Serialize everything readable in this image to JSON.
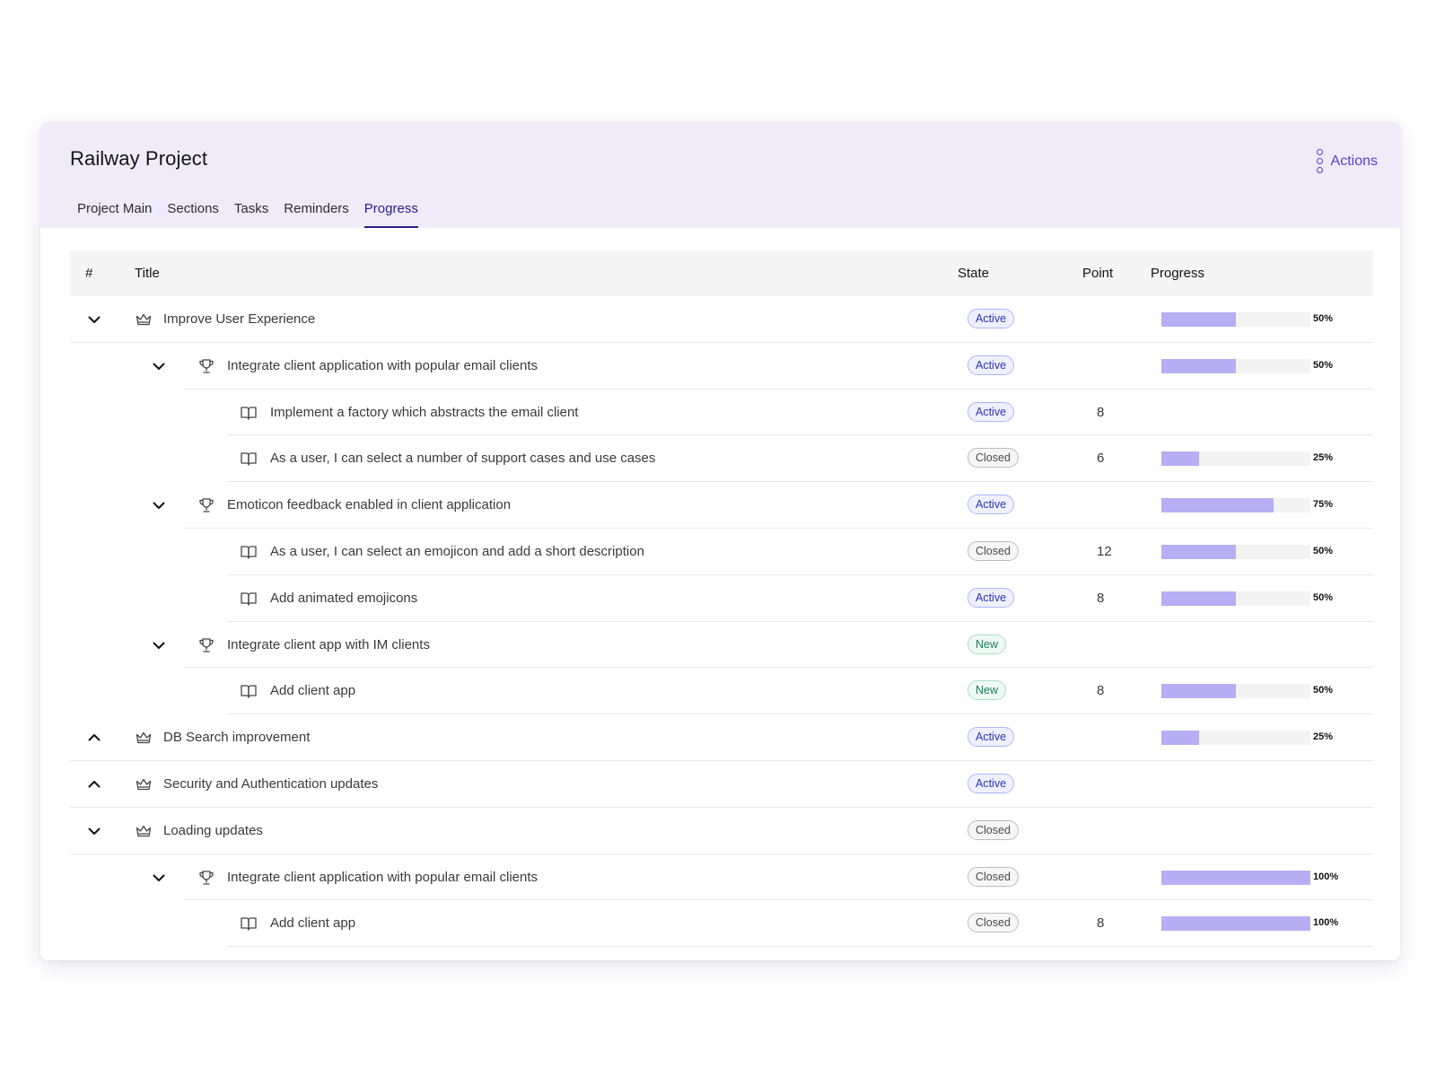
{
  "header": {
    "title": "Railway Project",
    "actions_label": "Actions",
    "tabs": [
      "Project Main",
      "Sections",
      "Tasks",
      "Reminders",
      "Progress"
    ],
    "active_tab": "Progress"
  },
  "table": {
    "columns": {
      "num": "#",
      "title": "Title",
      "state": "State",
      "point": "Point",
      "progress": "Progress"
    },
    "rows": [
      {
        "level": 0,
        "chevron": "down",
        "icon": "crown-icon",
        "title": "Improve User Experience",
        "state": "Active",
        "point": "",
        "progress": 50
      },
      {
        "level": 1,
        "chevron": "down",
        "icon": "trophy-icon",
        "title": "Integrate client application with popular email clients",
        "state": "Active",
        "point": "",
        "progress": 50
      },
      {
        "level": 2,
        "chevron": "",
        "icon": "book-icon",
        "title": "Implement a factory which abstracts the email client",
        "state": "Active",
        "point": "8",
        "progress": null
      },
      {
        "level": 2,
        "chevron": "",
        "icon": "book-icon",
        "title": "As a user, I can select a number of support cases and use cases",
        "state": "Closed",
        "point": "6",
        "progress": 25
      },
      {
        "level": 1,
        "chevron": "down",
        "icon": "trophy-icon",
        "title": "Emoticon feedback enabled in client application",
        "state": "Active",
        "point": "",
        "progress": 75
      },
      {
        "level": 2,
        "chevron": "",
        "icon": "book-icon",
        "title": "As a user, I can select an emojicon and add a short description",
        "state": "Closed",
        "point": "12",
        "progress": 50
      },
      {
        "level": 2,
        "chevron": "",
        "icon": "book-icon",
        "title": "Add animated emojicons",
        "state": "Active",
        "point": "8",
        "progress": 50
      },
      {
        "level": 1,
        "chevron": "down",
        "icon": "trophy-icon",
        "title": "Integrate client app with IM clients",
        "state": "New",
        "point": "",
        "progress": null
      },
      {
        "level": 2,
        "chevron": "",
        "icon": "book-icon",
        "title": "Add client app",
        "state": "New",
        "point": "8",
        "progress": 50
      },
      {
        "level": 0,
        "chevron": "up",
        "icon": "crown-icon",
        "title": "DB Search improvement",
        "state": "Active",
        "point": "",
        "progress": 25
      },
      {
        "level": 0,
        "chevron": "up",
        "icon": "crown-icon",
        "title": "Security and Authentication updates",
        "state": "Active",
        "point": "",
        "progress": null
      },
      {
        "level": 0,
        "chevron": "down",
        "icon": "crown-icon",
        "title": "Loading updates",
        "state": "Closed",
        "point": "",
        "progress": null
      },
      {
        "level": 1,
        "chevron": "down",
        "icon": "trophy-icon",
        "title": "Integrate client application with popular email clients",
        "state": "Closed",
        "point": "",
        "progress": 100
      },
      {
        "level": 2,
        "chevron": "",
        "icon": "book-icon",
        "title": "Add client app",
        "state": "Closed",
        "point": "8",
        "progress": 100
      }
    ]
  },
  "colors": {
    "accent": "#5a3fd6",
    "header_bg": "#efebf9",
    "progress_fill": "#b7aef3",
    "tab_active": "#2c1d86"
  }
}
